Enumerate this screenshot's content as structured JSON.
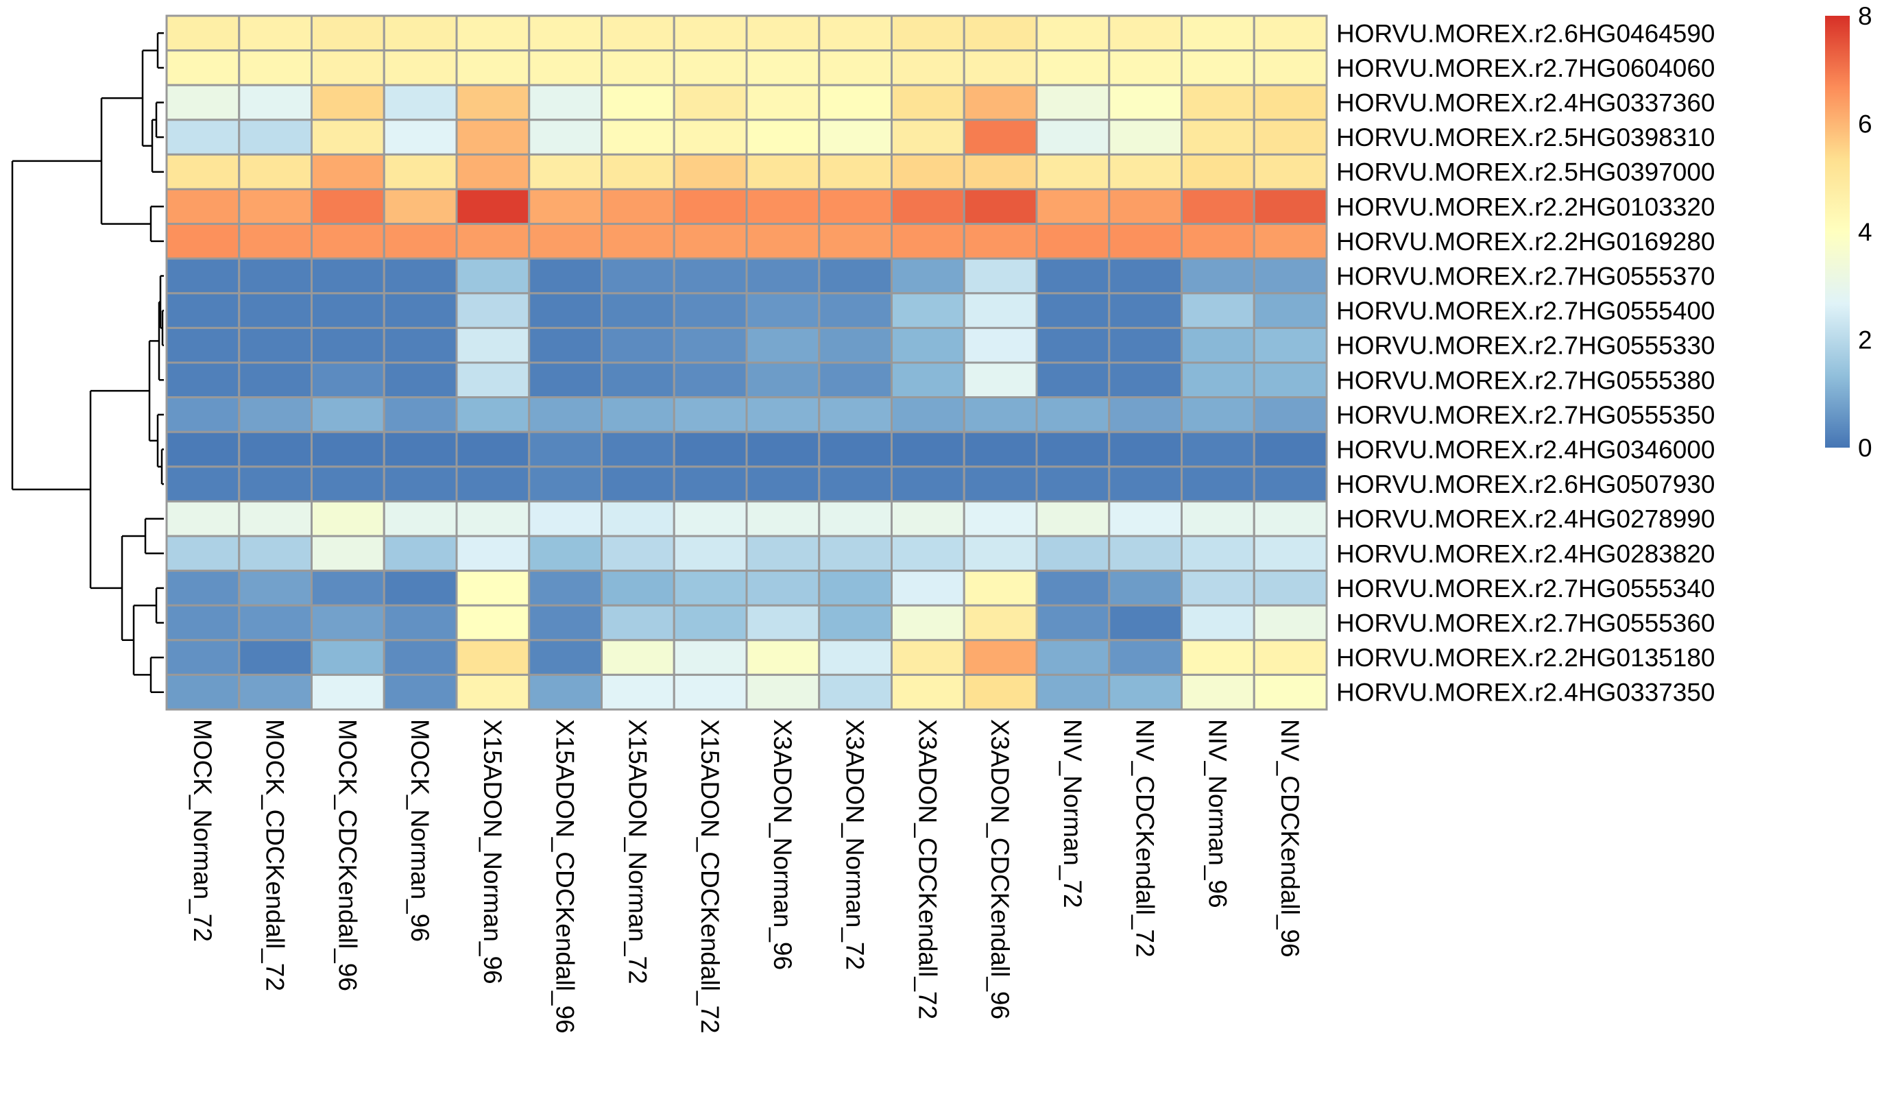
{
  "chart_data": {
    "type": "heatmap",
    "title": "",
    "xlabel": "",
    "ylabel": "",
    "columns": [
      "MOCK_Norman_72",
      "MOCK_CDCKendall_72",
      "MOCK_CDCKendall_96",
      "MOCK_Norman_96",
      "X15ADON_Norman_96",
      "X15ADON_CDCKendall_96",
      "X15ADON_Norman_72",
      "X15ADON_CDCKendall_72",
      "X3ADON_Norman_96",
      "X3ADON_Norman_72",
      "X3ADON_CDCKendall_72",
      "X3ADON_CDCKendall_96",
      "NIV_Norman_72",
      "NIV_CDCKendall_72",
      "NIV_Norman_96",
      "NIV_CDCKendall_96"
    ],
    "rows": [
      "HORVU.MOREX.r2.6HG0464590",
      "HORVU.MOREX.r2.7HG0604060",
      "HORVU.MOREX.r2.4HG0337360",
      "HORVU.MOREX.r2.5HG0398310",
      "HORVU.MOREX.r2.5HG0397000",
      "HORVU.MOREX.r2.2HG0103320",
      "HORVU.MOREX.r2.2HG0169280",
      "HORVU.MOREX.r2.7HG0555370",
      "HORVU.MOREX.r2.7HG0555400",
      "HORVU.MOREX.r2.7HG0555330",
      "HORVU.MOREX.r2.7HG0555380",
      "HORVU.MOREX.r2.7HG0555350",
      "HORVU.MOREX.r2.4HG0346000",
      "HORVU.MOREX.r2.6HG0507930",
      "HORVU.MOREX.r2.4HG0278990",
      "HORVU.MOREX.r2.4HG0283820",
      "HORVU.MOREX.r2.7HG0555340",
      "HORVU.MOREX.r2.7HG0555360",
      "HORVU.MOREX.r2.2HG0135180",
      "HORVU.MOREX.r2.4HG0337350"
    ],
    "values": [
      [
        4.7,
        4.6,
        4.8,
        4.7,
        4.5,
        4.5,
        4.6,
        4.6,
        4.6,
        4.6,
        4.9,
        5.0,
        4.5,
        4.6,
        4.4,
        4.5
      ],
      [
        4.3,
        4.4,
        4.6,
        4.5,
        4.4,
        4.4,
        4.4,
        4.4,
        4.3,
        4.4,
        4.6,
        4.6,
        4.3,
        4.3,
        4.3,
        4.4
      ],
      [
        3.1,
        2.8,
        5.5,
        2.4,
        5.7,
        2.9,
        4.1,
        4.8,
        4.3,
        4.1,
        5.2,
        6.0,
        3.3,
        3.9,
        5.1,
        5.3
      ],
      [
        2.2,
        2.1,
        4.8,
        2.7,
        6.0,
        2.9,
        4.2,
        4.4,
        4.1,
        3.8,
        4.8,
        6.9,
        2.9,
        3.4,
        5.0,
        5.2
      ],
      [
        5.1,
        5.1,
        6.2,
        5.0,
        6.1,
        4.8,
        5.0,
        5.6,
        5.1,
        5.1,
        5.5,
        5.5,
        4.9,
        4.9,
        5.3,
        5.1
      ],
      [
        6.4,
        6.3,
        6.9,
        5.9,
        7.8,
        6.2,
        6.4,
        6.7,
        6.6,
        6.6,
        7.0,
        7.4,
        6.3,
        6.4,
        7.0,
        7.3
      ],
      [
        6.6,
        6.5,
        6.5,
        6.5,
        6.4,
        6.4,
        6.4,
        6.4,
        6.4,
        6.4,
        6.5,
        6.5,
        6.6,
        6.6,
        6.5,
        6.4
      ],
      [
        0.2,
        0.2,
        0.2,
        0.2,
        1.5,
        0.2,
        0.4,
        0.4,
        0.4,
        0.3,
        0.9,
        2.2,
        0.2,
        0.2,
        0.8,
        0.8
      ],
      [
        0.2,
        0.2,
        0.2,
        0.2,
        2.0,
        0.2,
        0.3,
        0.4,
        0.6,
        0.5,
        1.5,
        2.5,
        0.2,
        0.2,
        1.6,
        1.0
      ],
      [
        0.2,
        0.2,
        0.2,
        0.2,
        2.4,
        0.2,
        0.4,
        0.5,
        0.9,
        0.7,
        1.2,
        2.6,
        0.2,
        0.2,
        1.2,
        1.3
      ],
      [
        0.2,
        0.2,
        0.4,
        0.2,
        2.2,
        0.2,
        0.3,
        0.4,
        0.7,
        0.5,
        1.2,
        2.8,
        0.2,
        0.2,
        1.2,
        1.2
      ],
      [
        0.6,
        0.8,
        1.1,
        0.6,
        1.2,
        0.9,
        1.0,
        1.1,
        1.1,
        1.1,
        0.9,
        1.0,
        1.0,
        0.8,
        1.0,
        0.8
      ],
      [
        0.1,
        0.1,
        0.1,
        0.1,
        0.1,
        0.3,
        0.2,
        0.1,
        0.1,
        0.1,
        0.1,
        0.1,
        0.1,
        0.1,
        0.2,
        0.1
      ],
      [
        0.2,
        0.2,
        0.2,
        0.2,
        0.2,
        0.3,
        0.2,
        0.2,
        0.2,
        0.2,
        0.2,
        0.2,
        0.2,
        0.2,
        0.2,
        0.2
      ],
      [
        3.0,
        3.0,
        3.5,
        2.9,
        2.9,
        2.6,
        2.5,
        2.8,
        2.9,
        2.9,
        3.0,
        2.7,
        3.1,
        2.7,
        2.9,
        2.9
      ],
      [
        1.8,
        1.8,
        3.1,
        1.6,
        2.6,
        1.4,
        2.0,
        2.4,
        1.9,
        1.9,
        2.1,
        2.4,
        1.8,
        1.9,
        2.2,
        2.4
      ],
      [
        0.5,
        0.8,
        0.4,
        0.2,
        4.0,
        0.5,
        1.2,
        1.5,
        1.6,
        1.3,
        2.6,
        4.3,
        0.4,
        0.7,
        2.0,
        1.9
      ],
      [
        0.5,
        0.6,
        0.8,
        0.5,
        4.0,
        0.4,
        1.7,
        1.5,
        2.2,
        1.3,
        3.4,
        4.8,
        0.5,
        0.2,
        2.5,
        3.1
      ],
      [
        0.5,
        0.2,
        1.2,
        0.4,
        5.2,
        0.3,
        3.5,
        2.8,
        3.8,
        2.5,
        4.8,
        6.2,
        1.0,
        0.6,
        4.3,
        4.5
      ],
      [
        0.7,
        0.8,
        2.7,
        0.5,
        4.5,
        0.9,
        2.7,
        2.7,
        3.1,
        2.1,
        4.5,
        5.3,
        1.0,
        1.2,
        3.6,
        3.9
      ]
    ],
    "color_scale": {
      "min": 0,
      "max": 8,
      "stops": [
        "#4575b4",
        "#91bfdb",
        "#e0f3f8",
        "#ffffbf",
        "#fee090",
        "#fc8d59",
        "#d73027"
      ],
      "ticks": [
        0,
        2,
        4,
        6,
        8
      ]
    },
    "cell_border_color": "#999999",
    "grid": false,
    "legend": "right",
    "dendrogram": "rows"
  }
}
